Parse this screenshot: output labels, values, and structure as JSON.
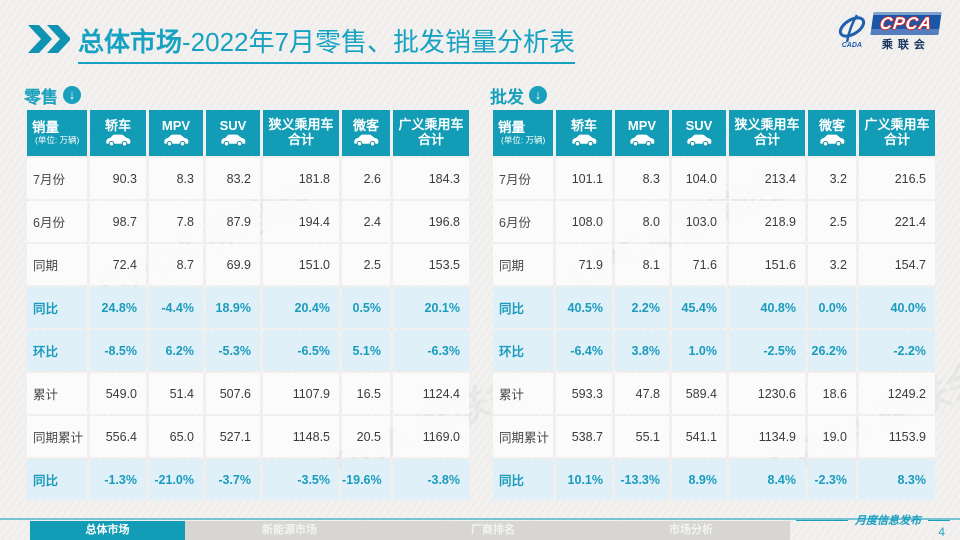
{
  "header": {
    "title_bold": "总体市场",
    "title_rest": "-2022年7月零售、批发销量分析表"
  },
  "logo": {
    "cada": "CADA",
    "cpca": "CPCA",
    "org": "乘联会"
  },
  "columns": [
    {
      "label": "销量",
      "sublabel": "(单位: 万辆)",
      "icon": null
    },
    {
      "label": "轿车",
      "icon": "sedan-icon"
    },
    {
      "label": "MPV",
      "icon": "mpv-icon"
    },
    {
      "label": "SUV",
      "icon": "suv-icon"
    },
    {
      "label": "狭义乘用车",
      "label2": "合计"
    },
    {
      "label": "微客",
      "icon": "microvan-icon"
    },
    {
      "label": "广义乘用车",
      "label2": "合计"
    }
  ],
  "retail": {
    "section_label": "零售",
    "rows": [
      {
        "label": "7月份",
        "values": [
          "90.3",
          "8.3",
          "83.2",
          "181.8",
          "2.6",
          "184.3"
        ],
        "highlight": false
      },
      {
        "label": "6月份",
        "values": [
          "98.7",
          "7.8",
          "87.9",
          "194.4",
          "2.4",
          "196.8"
        ],
        "highlight": false
      },
      {
        "label": "同期",
        "values": [
          "72.4",
          "8.7",
          "69.9",
          "151.0",
          "2.5",
          "153.5"
        ],
        "highlight": false
      },
      {
        "label": "同比",
        "values": [
          "24.8%",
          "-4.4%",
          "18.9%",
          "20.4%",
          "0.5%",
          "20.1%"
        ],
        "highlight": true
      },
      {
        "label": "环比",
        "values": [
          "-8.5%",
          "6.2%",
          "-5.3%",
          "-6.5%",
          "5.1%",
          "-6.3%"
        ],
        "highlight": true
      },
      {
        "label": "累计",
        "values": [
          "549.0",
          "51.4",
          "507.6",
          "1107.9",
          "16.5",
          "1124.4"
        ],
        "highlight": false
      },
      {
        "label": "同期累计",
        "values": [
          "556.4",
          "65.0",
          "527.1",
          "1148.5",
          "20.5",
          "1169.0"
        ],
        "highlight": false
      },
      {
        "label": "同比",
        "values": [
          "-1.3%",
          "-21.0%",
          "-3.7%",
          "-3.5%",
          "-19.6%",
          "-3.8%"
        ],
        "highlight": true
      }
    ]
  },
  "wholesale": {
    "section_label": "批发",
    "rows": [
      {
        "label": "7月份",
        "values": [
          "101.1",
          "8.3",
          "104.0",
          "213.4",
          "3.2",
          "216.5"
        ],
        "highlight": false
      },
      {
        "label": "6月份",
        "values": [
          "108.0",
          "8.0",
          "103.0",
          "218.9",
          "2.5",
          "221.4"
        ],
        "highlight": false
      },
      {
        "label": "同期",
        "values": [
          "71.9",
          "8.1",
          "71.6",
          "151.6",
          "3.2",
          "154.7"
        ],
        "highlight": false
      },
      {
        "label": "同比",
        "values": [
          "40.5%",
          "2.2%",
          "45.4%",
          "40.8%",
          "0.0%",
          "40.0%"
        ],
        "highlight": true
      },
      {
        "label": "环比",
        "values": [
          "-6.4%",
          "3.8%",
          "1.0%",
          "-2.5%",
          "26.2%",
          "-2.2%"
        ],
        "highlight": true
      },
      {
        "label": "累计",
        "values": [
          "593.3",
          "47.8",
          "589.4",
          "1230.6",
          "18.6",
          "1249.2"
        ],
        "highlight": false
      },
      {
        "label": "同期累计",
        "values": [
          "538.7",
          "55.1",
          "541.1",
          "1134.9",
          "19.0",
          "1153.9"
        ],
        "highlight": false
      },
      {
        "label": "同比",
        "values": [
          "10.1%",
          "-13.3%",
          "8.9%",
          "8.4%",
          "-2.3%",
          "8.3%"
        ],
        "highlight": true
      }
    ]
  },
  "watermark": "CPCA 乘联会",
  "footer": {
    "tabs": [
      {
        "label": "总体市场",
        "active": true
      },
      {
        "label": "新能源市场",
        "active": false
      },
      {
        "label": "厂商排名",
        "active": false
      },
      {
        "label": "市场分析",
        "active": false
      }
    ],
    "note": "月度信息发布",
    "page": "4"
  },
  "colors": {
    "teal": "#129cb5",
    "title": "#17a2c2",
    "highlight_bg": "#dff0f8"
  }
}
